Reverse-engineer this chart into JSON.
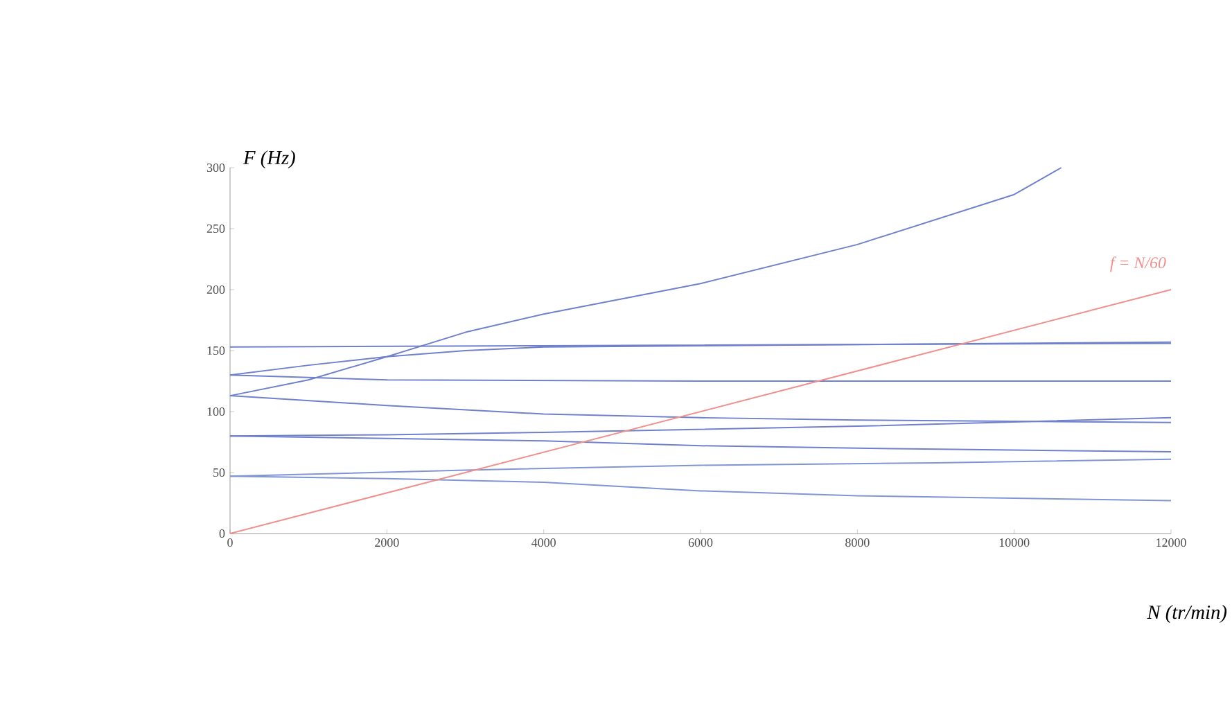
{
  "chart_data": {
    "type": "line",
    "xlabel": "N (tr/min)",
    "ylabel": "F (Hz)",
    "xlim": [
      0,
      12000
    ],
    "ylim": [
      0,
      300
    ],
    "xticks": [
      0,
      2000,
      4000,
      6000,
      8000,
      10000,
      12000
    ],
    "yticks": [
      0,
      50,
      100,
      150,
      200,
      250,
      300
    ],
    "grid": false,
    "marker": "none",
    "line_style": "solid",
    "series": [
      {
        "color": "#6f80cc",
        "x": [
          0,
          1000,
          2000,
          3000,
          4000,
          6000,
          8000,
          10000,
          10600
        ],
        "values": [
          113,
          126,
          145,
          165,
          180,
          205,
          237,
          278,
          300
        ]
      },
      {
        "color": "#6f80cc",
        "x": [
          0,
          4000,
          8000,
          12000
        ],
        "values": [
          153,
          154,
          155,
          156
        ]
      },
      {
        "color": "#6f80cc",
        "x": [
          0,
          1000,
          2000,
          3000,
          4000,
          8000,
          12000
        ],
        "values": [
          130,
          138,
          145,
          150,
          153,
          155,
          157
        ]
      },
      {
        "color": "#6f80cc",
        "x": [
          0,
          2000,
          6000,
          12000
        ],
        "values": [
          130,
          126,
          125,
          125
        ]
      },
      {
        "color": "#6f80cc",
        "x": [
          0,
          2000,
          4000,
          6000,
          8000,
          12000
        ],
        "values": [
          113,
          105,
          98,
          95,
          93,
          91
        ]
      },
      {
        "color": "#6f80cc",
        "x": [
          0,
          2000,
          4000,
          8000,
          12000
        ],
        "values": [
          80,
          81,
          83,
          88,
          95
        ]
      },
      {
        "color": "#6f80cc",
        "x": [
          0,
          2000,
          4000,
          6000,
          8000,
          12000
        ],
        "values": [
          80,
          78,
          76,
          72,
          70,
          67
        ]
      },
      {
        "color": "#7f95d4",
        "x": [
          0,
          3000,
          6000,
          9000,
          12000
        ],
        "values": [
          47,
          52,
          56,
          58,
          61
        ]
      },
      {
        "color": "#7f95d4",
        "x": [
          0,
          2000,
          4000,
          6000,
          8000,
          10000,
          12000
        ],
        "values": [
          47,
          45,
          42,
          35,
          31,
          29,
          27
        ]
      },
      {
        "name": "f = N/60",
        "color": "#f0908c",
        "x": [
          0,
          12000
        ],
        "values": [
          0,
          200
        ]
      }
    ]
  }
}
